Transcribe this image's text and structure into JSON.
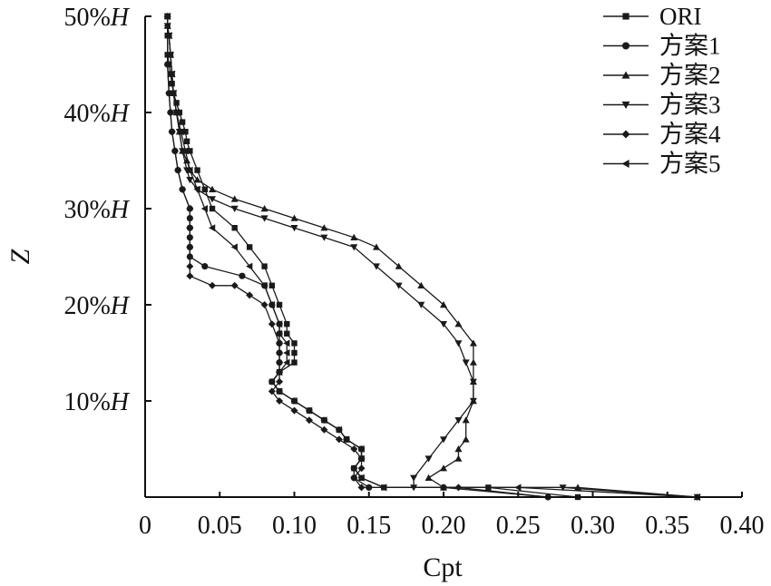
{
  "chart_data": {
    "type": "line",
    "title": "",
    "xlabel": "Cpt",
    "ylabel": "Z",
    "xlim": [
      0,
      0.4
    ],
    "ylim": [
      0,
      50
    ],
    "x_ticks": [
      0,
      0.05,
      0.1,
      0.15,
      0.2,
      0.25,
      0.3,
      0.35,
      0.4
    ],
    "x_tick_labels": [
      "0",
      "0.05",
      "0.10",
      "0.15",
      "0.20",
      "0.25",
      "0.30",
      "0.35",
      "0.40"
    ],
    "y_ticks": [
      10,
      20,
      30,
      40,
      50
    ],
    "y_tick_labels": [
      "10%H",
      "20%H",
      "30%H",
      "40%H",
      "50%H"
    ],
    "grid": false,
    "legend_position": "top-right",
    "series": [
      {
        "name": "ORI",
        "marker": "square",
        "color": "#1a1a1a",
        "x": [
          0.29,
          0.23,
          0.16,
          0.145,
          0.14,
          0.145,
          0.145,
          0.135,
          0.13,
          0.12,
          0.11,
          0.1,
          0.09,
          0.085,
          0.09,
          0.1,
          0.1,
          0.1,
          0.095,
          0.095,
          0.09,
          0.085,
          0.08,
          0.07,
          0.06,
          0.045,
          0.04,
          0.035,
          0.03,
          0.028,
          0.027,
          0.025,
          0.023,
          0.021,
          0.019,
          0.018,
          0.017,
          0.016,
          0.015,
          0.015,
          0.015
        ],
        "y": [
          0,
          1,
          1,
          2,
          3,
          4,
          5,
          6,
          7,
          8,
          9,
          10,
          11,
          12,
          13,
          14,
          15,
          16,
          17,
          18,
          20,
          22,
          24,
          26,
          28,
          30,
          32,
          34,
          36,
          37,
          38,
          39,
          40,
          41,
          42,
          43,
          44,
          45,
          46,
          48,
          50
        ]
      },
      {
        "name": "方案1",
        "marker": "circle",
        "color": "#1a1a1a",
        "x": [
          0.27,
          0.2,
          0.15,
          0.14,
          0.14,
          0.145,
          0.145,
          0.135,
          0.13,
          0.12,
          0.11,
          0.1,
          0.09,
          0.085,
          0.09,
          0.09,
          0.09,
          0.09,
          0.09,
          0.09,
          0.085,
          0.08,
          0.065,
          0.04,
          0.03,
          0.03,
          0.03,
          0.03,
          0.03,
          0.03,
          0.025,
          0.022,
          0.02,
          0.018,
          0.017,
          0.016,
          0.015,
          0.015
        ],
        "y": [
          0,
          1,
          1,
          2,
          3,
          4,
          5,
          6,
          7,
          8,
          9,
          10,
          11,
          12,
          13,
          14,
          15,
          16,
          17,
          18,
          20,
          22,
          23,
          24,
          25,
          26,
          27,
          28,
          29,
          30,
          32,
          34,
          36,
          38,
          40,
          42,
          45,
          50
        ]
      },
      {
        "name": "方案2",
        "marker": "triangle-up",
        "color": "#1a1a1a",
        "x": [
          0.37,
          0.29,
          0.2,
          0.19,
          0.2,
          0.21,
          0.21,
          0.215,
          0.215,
          0.22,
          0.22,
          0.22,
          0.22,
          0.21,
          0.2,
          0.185,
          0.17,
          0.155,
          0.14,
          0.12,
          0.1,
          0.08,
          0.06,
          0.045,
          0.035,
          0.03,
          0.028,
          0.025,
          0.023,
          0.021,
          0.019,
          0.018,
          0.017,
          0.016,
          0.015,
          0.015
        ],
        "y": [
          0,
          1,
          1,
          2,
          3,
          4,
          5,
          6,
          8,
          10,
          12,
          14,
          16,
          18,
          20,
          22,
          24,
          26,
          27,
          28,
          29,
          30,
          31,
          32,
          33,
          34,
          35,
          36,
          38,
          40,
          42,
          44,
          46,
          48,
          49,
          50
        ]
      },
      {
        "name": "方案3",
        "marker": "triangle-down",
        "color": "#1a1a1a",
        "x": [
          0.37,
          0.28,
          0.18,
          0.18,
          0.19,
          0.2,
          0.21,
          0.22,
          0.22,
          0.215,
          0.21,
          0.2,
          0.185,
          0.17,
          0.155,
          0.14,
          0.12,
          0.1,
          0.08,
          0.06,
          0.045,
          0.035,
          0.03,
          0.028,
          0.025,
          0.023,
          0.021,
          0.019,
          0.018,
          0.017,
          0.016,
          0.015,
          0.015
        ],
        "y": [
          0,
          1,
          1,
          2,
          4,
          6,
          8,
          10,
          12,
          14,
          16,
          18,
          20,
          22,
          24,
          26,
          27,
          28,
          29,
          30,
          31,
          32,
          33,
          34,
          36,
          38,
          40,
          42,
          44,
          46,
          48,
          49,
          50
        ]
      },
      {
        "name": "方案4",
        "marker": "diamond",
        "color": "#1a1a1a",
        "x": [
          0.27,
          0.21,
          0.145,
          0.14,
          0.145,
          0.145,
          0.14,
          0.13,
          0.12,
          0.11,
          0.1,
          0.09,
          0.085,
          0.09,
          0.09,
          0.09,
          0.09,
          0.09,
          0.085,
          0.08,
          0.07,
          0.06,
          0.045,
          0.03,
          0.03,
          0.03,
          0.03,
          0.03,
          0.025,
          0.022,
          0.02,
          0.018,
          0.017,
          0.016,
          0.015,
          0.015
        ],
        "y": [
          0,
          1,
          1,
          2,
          3,
          4,
          5,
          6,
          7,
          8,
          9,
          10,
          11,
          12,
          13,
          14,
          15,
          16,
          18,
          20,
          21,
          22,
          22,
          23,
          24,
          26,
          28,
          30,
          32,
          34,
          36,
          38,
          40,
          42,
          45,
          50
        ]
      },
      {
        "name": "方案5",
        "marker": "triangle-left",
        "color": "#1a1a1a",
        "x": [
          0.37,
          0.25,
          0.16,
          0.145,
          0.14,
          0.145,
          0.145,
          0.135,
          0.13,
          0.12,
          0.11,
          0.1,
          0.09,
          0.085,
          0.09,
          0.095,
          0.095,
          0.095,
          0.09,
          0.09,
          0.085,
          0.08,
          0.07,
          0.06,
          0.045,
          0.04,
          0.035,
          0.03,
          0.027,
          0.024,
          0.021,
          0.019,
          0.018,
          0.017,
          0.016,
          0.015,
          0.015
        ],
        "y": [
          0,
          1,
          1,
          2,
          3,
          4,
          5,
          6,
          7,
          8,
          9,
          10,
          11,
          12,
          13,
          14,
          15,
          16,
          17,
          18,
          20,
          22,
          24,
          26,
          28,
          30,
          32,
          34,
          36,
          38,
          40,
          42,
          44,
          46,
          48,
          49,
          50
        ]
      }
    ]
  }
}
